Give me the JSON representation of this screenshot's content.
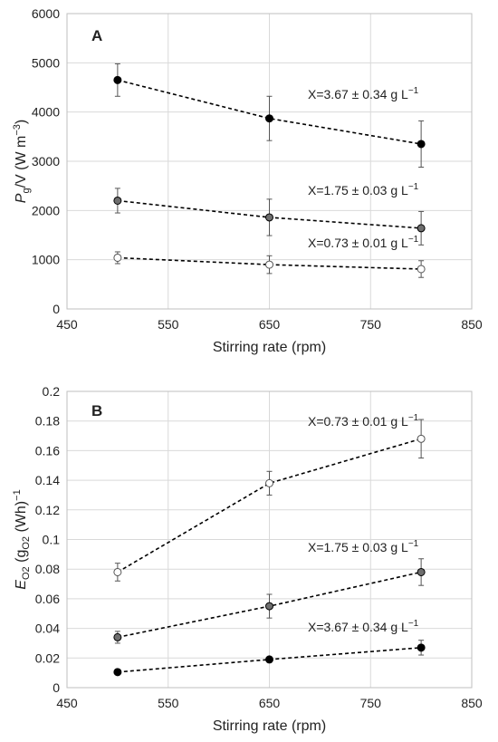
{
  "chart_data": [
    {
      "panel": "A",
      "type": "line",
      "xlabel": "Stirring rate (rpm)",
      "ylabel": {
        "main": "P",
        "sub": "g",
        "rest": "/V (W m",
        "sup": "−3",
        "end": ")"
      },
      "xlim": [
        450,
        850
      ],
      "ylim": [
        0,
        6000
      ],
      "xticks": [
        450,
        550,
        650,
        750,
        850
      ],
      "yticks": [
        0,
        1000,
        2000,
        3000,
        4000,
        5000,
        6000
      ],
      "grid": true,
      "series": [
        {
          "name": "X=3.67 ± 0.34 g L",
          "unit_sup": "−1",
          "marker_color": "#000000",
          "x": [
            500,
            650,
            800
          ],
          "y": [
            4650,
            3870,
            3350
          ],
          "err": [
            330,
            450,
            470
          ]
        },
        {
          "name": "X=1.75 ± 0.03 g L",
          "unit_sup": "−1",
          "marker_color": "#6e6e6e",
          "x": [
            500,
            650,
            800
          ],
          "y": [
            2200,
            1860,
            1640
          ],
          "err": [
            250,
            370,
            340
          ]
        },
        {
          "name": "X=0.73 ± 0.01 g L",
          "unit_sup": "−1",
          "marker_color": "#ffffff",
          "x": [
            500,
            650,
            800
          ],
          "y": [
            1040,
            900,
            810
          ],
          "err": [
            120,
            180,
            170
          ]
        }
      ]
    },
    {
      "panel": "B",
      "type": "line",
      "xlabel": "Stirring rate (rpm)",
      "ylabel": {
        "main": "E",
        "sub": "O2",
        "rest": " (g",
        "sub2": "O2",
        "end": " (Wh)",
        "sup": "−1"
      },
      "xlim": [
        450,
        850
      ],
      "ylim": [
        0,
        0.2
      ],
      "xticks": [
        450,
        550,
        650,
        750,
        850
      ],
      "yticks": [
        "0",
        "0.02",
        "0.04",
        "0.06",
        "0.08",
        "0.1",
        "0.12",
        "0.14",
        "0.16",
        "0.18",
        "0.2"
      ],
      "grid": true,
      "series": [
        {
          "name": "X=0.73 ± 0.01 g L",
          "unit_sup": "−1",
          "marker_color": "#ffffff",
          "x": [
            500,
            650,
            800
          ],
          "y": [
            0.078,
            0.138,
            0.168
          ],
          "err": [
            0.006,
            0.008,
            0.013
          ]
        },
        {
          "name": "X=1.75 ± 0.03 g L",
          "unit_sup": "−1",
          "marker_color": "#6e6e6e",
          "x": [
            500,
            650,
            800
          ],
          "y": [
            0.034,
            0.055,
            0.078
          ],
          "err": [
            0.004,
            0.008,
            0.009
          ]
        },
        {
          "name": "X=3.67 ± 0.34 g L",
          "unit_sup": "−1",
          "marker_color": "#000000",
          "x": [
            500,
            650,
            800
          ],
          "y": [
            0.0105,
            0.019,
            0.027
          ],
          "err": [
            0.001,
            0.001,
            0.005
          ]
        }
      ]
    }
  ]
}
